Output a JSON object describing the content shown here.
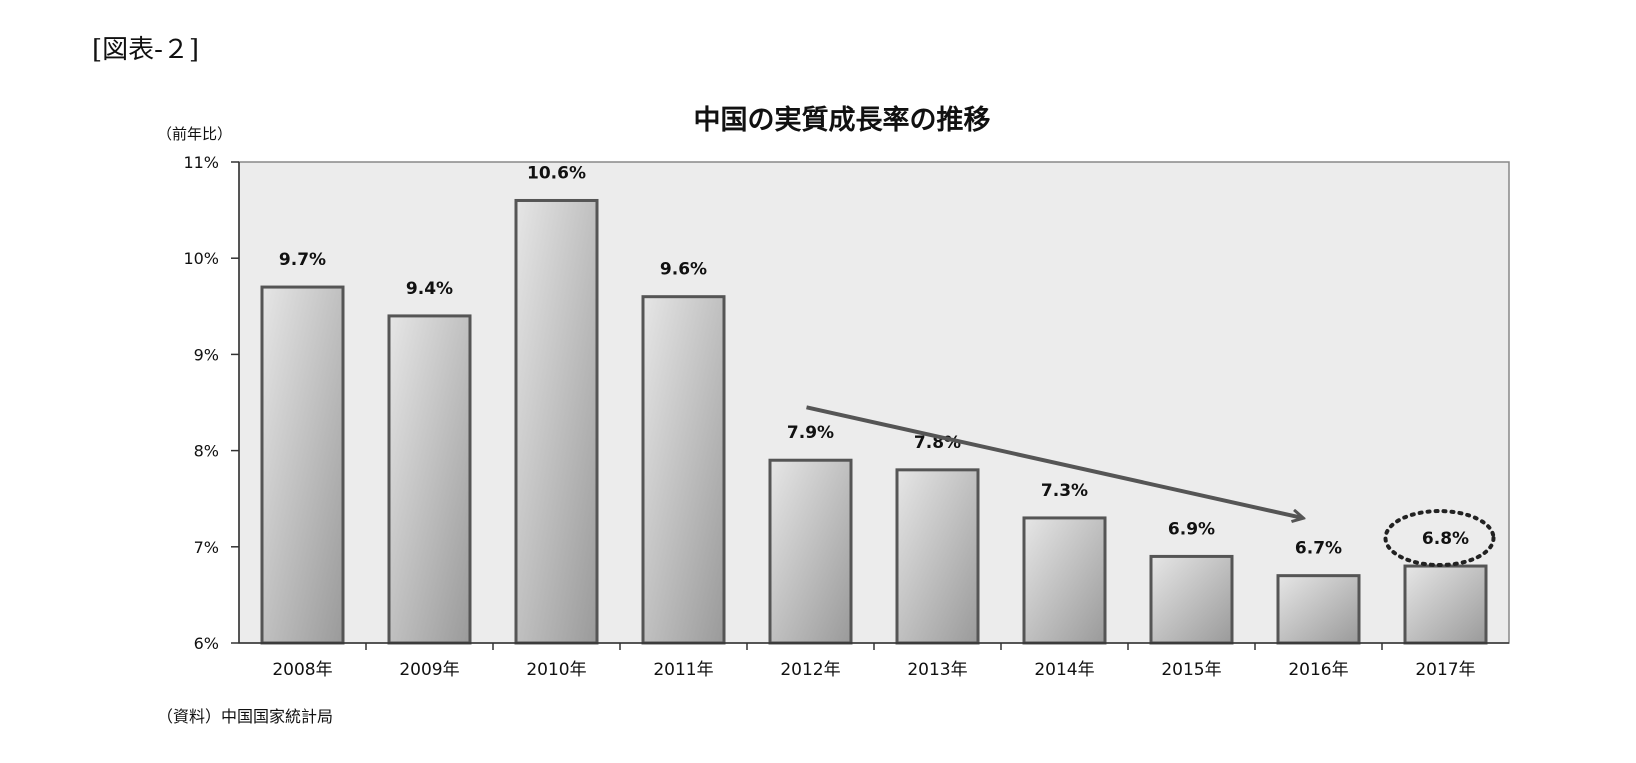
{
  "figure_label": "[図表-２]",
  "chart_data": {
    "type": "bar",
    "title": "中国の実質成長率の推移",
    "ylabel": "（前年比）",
    "source": "（資料）中国国家統計局",
    "categories": [
      "2008年",
      "2009年",
      "2010年",
      "2011年",
      "2012年",
      "2013年",
      "2014年",
      "2015年",
      "2016年",
      "2017年"
    ],
    "values": [
      9.7,
      9.4,
      10.6,
      9.6,
      7.9,
      7.8,
      7.3,
      6.9,
      6.7,
      6.8
    ],
    "data_labels": [
      "9.7%",
      "9.4%",
      "10.6%",
      "9.6%",
      "7.9%",
      "7.8%",
      "7.3%",
      "6.9%",
      "6.7%",
      "6.8%"
    ],
    "ylim": [
      6,
      11
    ],
    "yticks": [
      6,
      7,
      8,
      9,
      10,
      11
    ],
    "ytick_labels": [
      "6%",
      "7%",
      "8%",
      "9%",
      "10%",
      "11%"
    ],
    "grid": false,
    "legend": "none",
    "annotations": {
      "trend_arrow": {
        "from_category": "2012年",
        "to_category": "2016年"
      },
      "highlight_circle": {
        "category": "2017年"
      }
    },
    "colors": {
      "plot_background": "#ececec",
      "bar_light": "#e6e6e6",
      "bar_dark": "#9a9a9a",
      "bar_border": "#555555",
      "arrow": "#555555",
      "text": "#111111"
    }
  }
}
